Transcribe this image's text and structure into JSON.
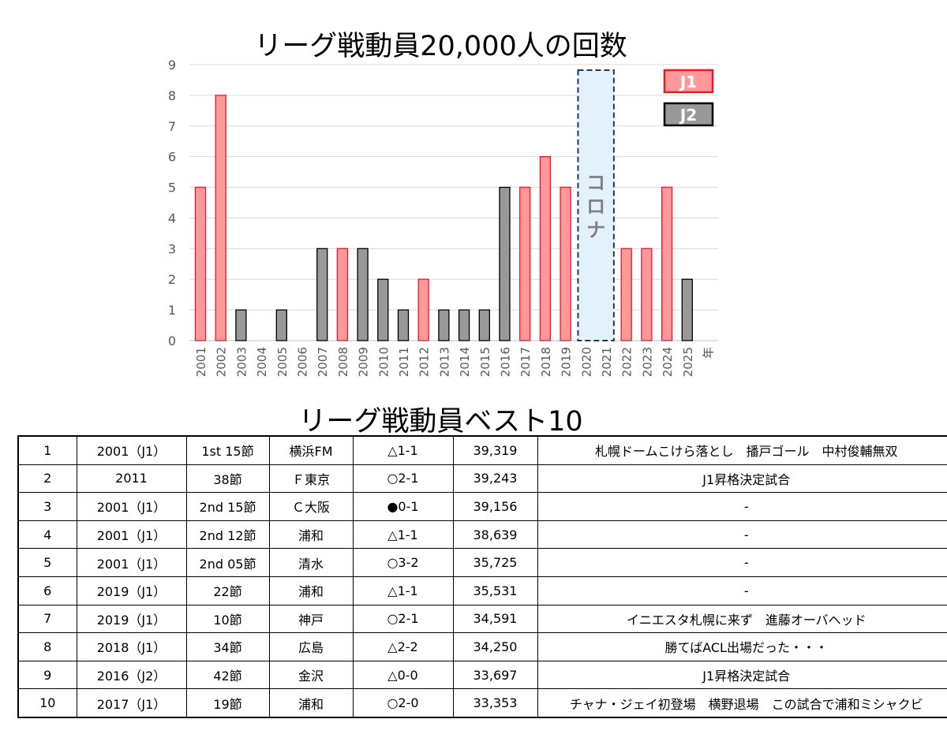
{
  "chart_data": {
    "type": "bar",
    "title": "リーグ戦動員20,000人の回数",
    "xlabel": "年",
    "ylabel": "",
    "ylim": [
      0,
      9
    ],
    "grid": true,
    "categories": [
      "2001",
      "2002",
      "2003",
      "2004",
      "2005",
      "2006",
      "2007",
      "2008",
      "2009",
      "2010",
      "2011",
      "2012",
      "2013",
      "2014",
      "2015",
      "2016",
      "2017",
      "2018",
      "2019",
      "2020",
      "2021",
      "2022",
      "2023",
      "2024",
      "2025"
    ],
    "values": [
      5,
      8,
      1,
      0,
      1,
      0,
      3,
      3,
      3,
      2,
      1,
      2,
      1,
      1,
      1,
      5,
      5,
      6,
      5,
      null,
      null,
      3,
      3,
      5,
      2
    ],
    "division": [
      "J1",
      "J1",
      "J2",
      "",
      "J2",
      "",
      "J2",
      "J1",
      "J2",
      "J2",
      "J2",
      "J1",
      "J2",
      "J2",
      "J2",
      "J2",
      "J1",
      "J1",
      "J1",
      "",
      "",
      "J1",
      "J1",
      "J1",
      "J2"
    ],
    "legend": [
      {
        "name": "J1",
        "color": "#ff9999",
        "border": "#e8192c"
      },
      {
        "name": "J2",
        "color": "#999999",
        "border": "#000000"
      }
    ],
    "legend_position": "top-right",
    "annotation": {
      "text": "コロナ",
      "span": [
        "2020",
        "2021"
      ],
      "fill": "#e3f2fa",
      "border": "#1f3b57"
    }
  },
  "colors": {
    "j1_fill": "#ff9999",
    "j1_border": "#e8192c",
    "j2_fill": "#999999",
    "j2_border": "#000000"
  },
  "table": {
    "title": "リーグ戦動員ベスト10",
    "rows": [
      {
        "rank": "1",
        "season": "2001（J1）",
        "matchday": "1st 15節",
        "opponent": "横浜FM",
        "result": "△1-1",
        "attendance": "39,319",
        "note": "札幌ドームこけら落とし　播戸ゴール　中村俊輔無双"
      },
      {
        "rank": "2",
        "season": "2011",
        "matchday": "38節",
        "opponent": "Ｆ東京",
        "result": "○2-1",
        "attendance": "39,243",
        "note": "J1昇格決定試合"
      },
      {
        "rank": "3",
        "season": "2001（J1）",
        "matchday": "2nd 15節",
        "opponent": "Ｃ大阪",
        "result": "●0-1",
        "attendance": "39,156",
        "note": "-"
      },
      {
        "rank": "4",
        "season": "2001（J1）",
        "matchday": "2nd 12節",
        "opponent": "浦和",
        "result": "△1-1",
        "attendance": "38,639",
        "note": "-"
      },
      {
        "rank": "5",
        "season": "2001（J1）",
        "matchday": "2nd 05節",
        "opponent": "清水",
        "result": "○3-2",
        "attendance": "35,725",
        "note": "-"
      },
      {
        "rank": "6",
        "season": "2019（J1）",
        "matchday": "22節",
        "opponent": "浦和",
        "result": "△1-1",
        "attendance": "35,531",
        "note": "-"
      },
      {
        "rank": "7",
        "season": "2019（J1）",
        "matchday": "10節",
        "opponent": "神戸",
        "result": "○2-1",
        "attendance": "34,591",
        "note": "イニエスタ札幌に来ず　進藤オーバヘッド"
      },
      {
        "rank": "8",
        "season": "2018（J1）",
        "matchday": "34節",
        "opponent": "広島",
        "result": "△2-2",
        "attendance": "34,250",
        "note": "勝てばACL出場だった・・・"
      },
      {
        "rank": "9",
        "season": "2016（J2）",
        "matchday": "42節",
        "opponent": "金沢",
        "result": "△0-0",
        "attendance": "33,697",
        "note": "J1昇格決定試合"
      },
      {
        "rank": "10",
        "season": "2017（J1）",
        "matchday": "19節",
        "opponent": "浦和",
        "result": "○2-0",
        "attendance": "33,353",
        "note": "チャナ・ジェイ初登場　横野退場　この試合で浦和ミシャクビ"
      }
    ]
  }
}
